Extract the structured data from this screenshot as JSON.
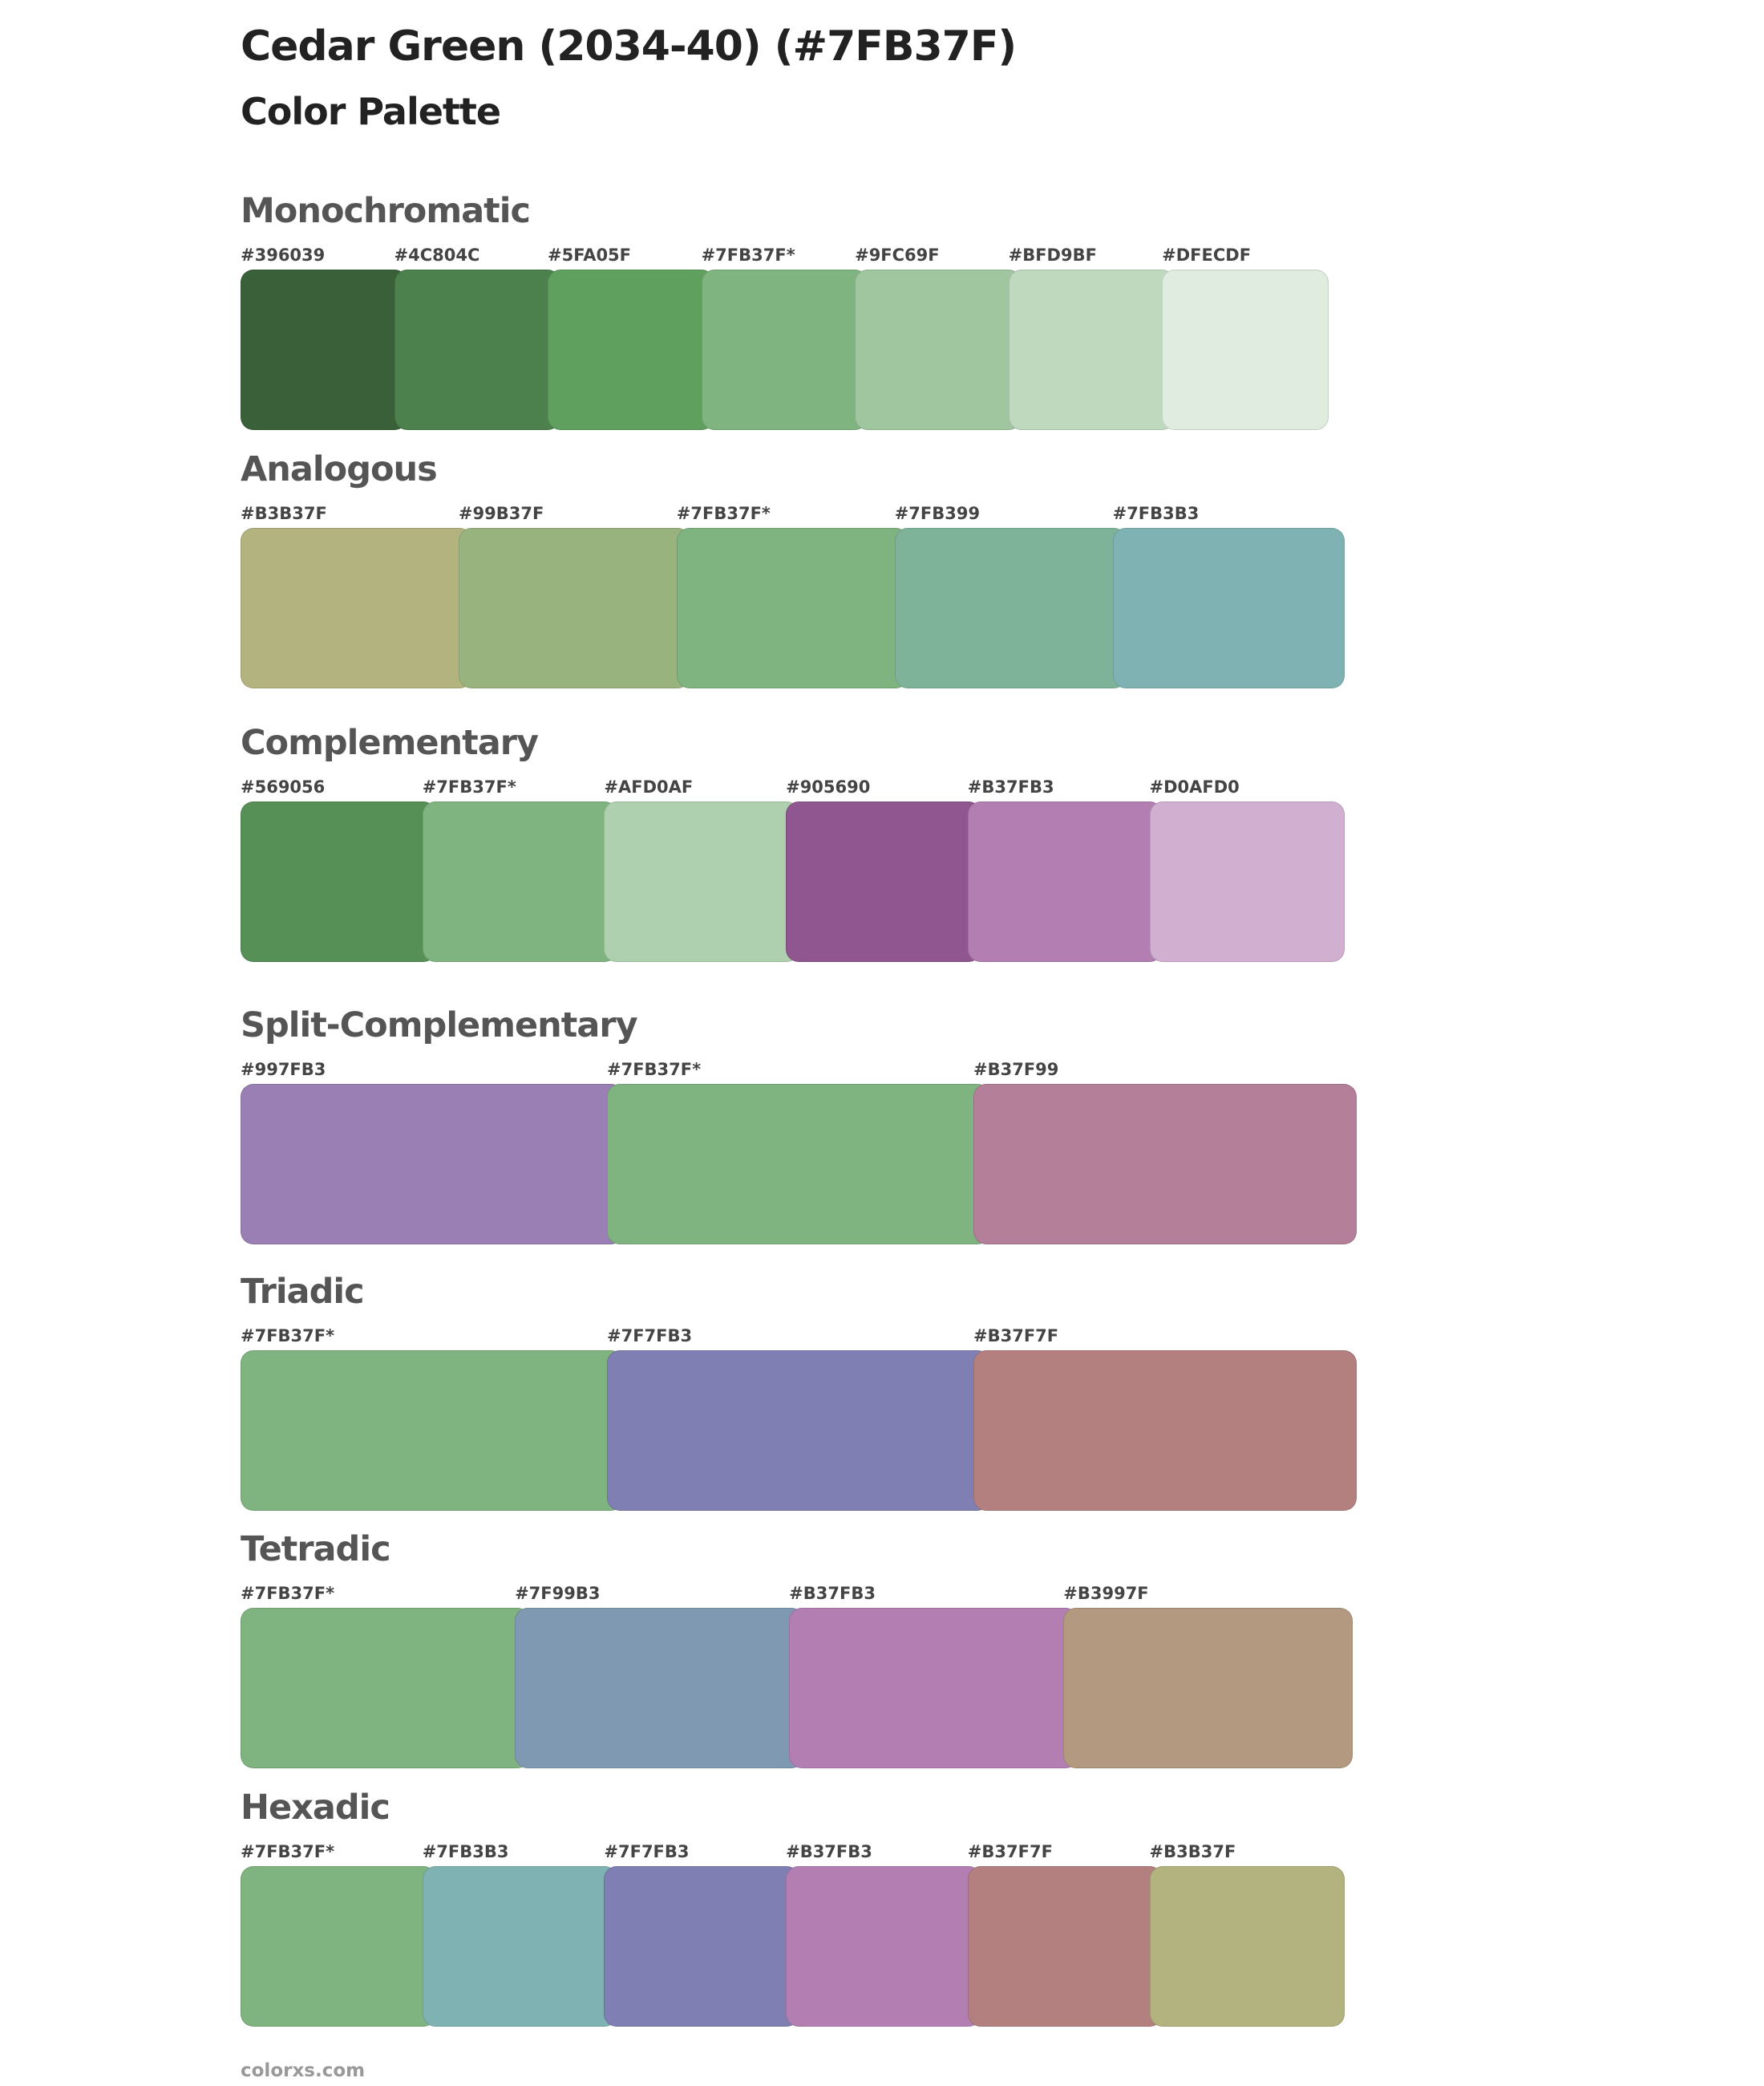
{
  "title": "Cedar Green (2034-40) (#7FB37F)",
  "subtitle": "Color Palette",
  "sections": [
    {
      "name": "Monochromatic",
      "colors": [
        "#396039",
        "#4C804C",
        "#5FA05F",
        "#7FB37F*",
        "#9FC69F",
        "#BFD9BF",
        "#DFECDF"
      ]
    },
    {
      "name": "Analogous",
      "colors": [
        "#B3B37F",
        "#99B37F",
        "#7FB37F*",
        "#7FB399",
        "#7FB3B3"
      ]
    },
    {
      "name": "Complementary",
      "colors": [
        "#569056",
        "#7FB37F*",
        "#AFD0AF",
        "#905690",
        "#B37FB3",
        "#D0AFD0"
      ]
    },
    {
      "name": "Split-Complementary",
      "colors": [
        "#997FB3",
        "#7FB37F*",
        "#B37F99"
      ]
    },
    {
      "name": "Triadic",
      "colors": [
        "#7FB37F*",
        "#7F7FB3",
        "#B37F7F"
      ]
    },
    {
      "name": "Tetradic",
      "colors": [
        "#7FB37F*",
        "#7F99B3",
        "#B37FB3",
        "#B3997F"
      ]
    },
    {
      "name": "Hexadic",
      "colors": [
        "#7FB37F*",
        "#7FB3B3",
        "#7F7FB3",
        "#B37FB3",
        "#B37F7F",
        "#B3B37F"
      ]
    }
  ],
  "footer": "colorxs.com"
}
